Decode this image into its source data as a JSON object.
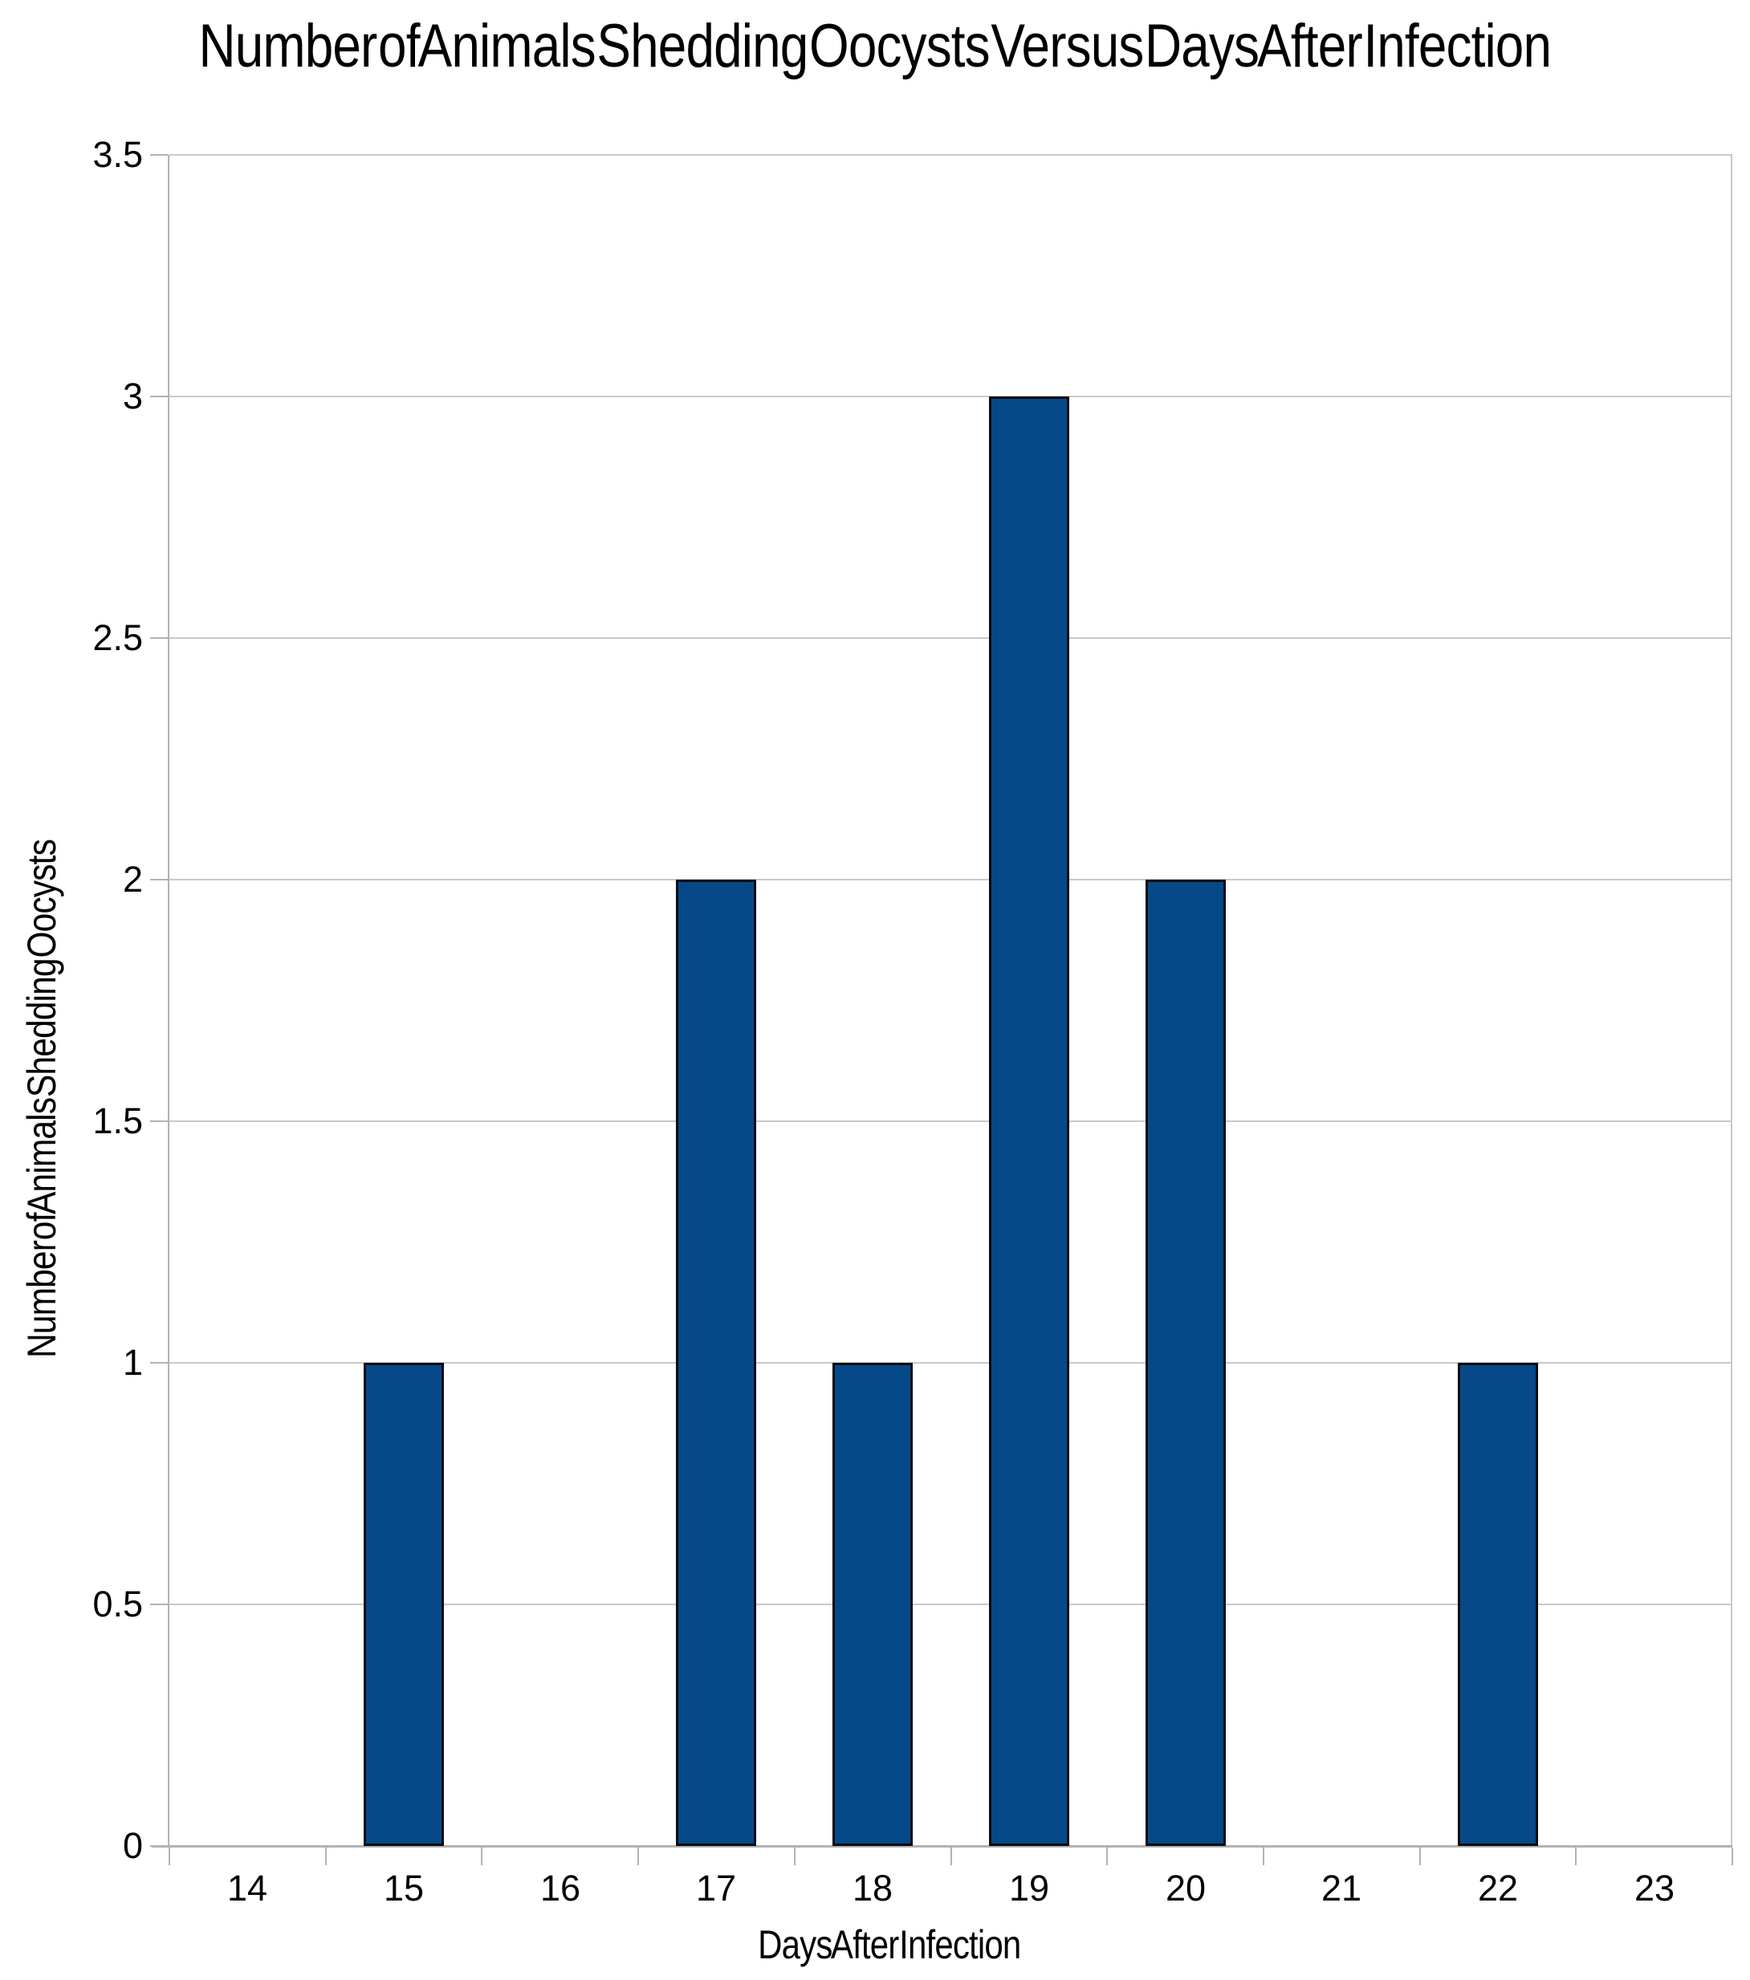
{
  "chart_data": {
    "type": "bar",
    "title": "Number of Animals Shedding Oocysts Versus Days After Infection",
    "xlabel": "Days After Infection",
    "ylabel": "Number of Animals Shedding Oocysts",
    "categories": [
      "14",
      "15",
      "16",
      "17",
      "18",
      "19",
      "20",
      "21",
      "22",
      "23"
    ],
    "values": [
      0,
      1,
      0,
      2,
      1,
      3,
      2,
      0,
      1,
      0
    ],
    "ylim": [
      0,
      3.5
    ],
    "yticks": [
      0,
      0.5,
      1,
      1.5,
      2,
      2.5,
      3,
      3.5
    ],
    "grid": "horizontal-only",
    "legend": "none",
    "colors": {
      "bar_fill": "#064989",
      "bar_border": "#0b0b14",
      "gridline": "#c9c9c9",
      "axis_line": "#b3b3b3",
      "text": "#000000",
      "background": "#ffffff"
    }
  }
}
